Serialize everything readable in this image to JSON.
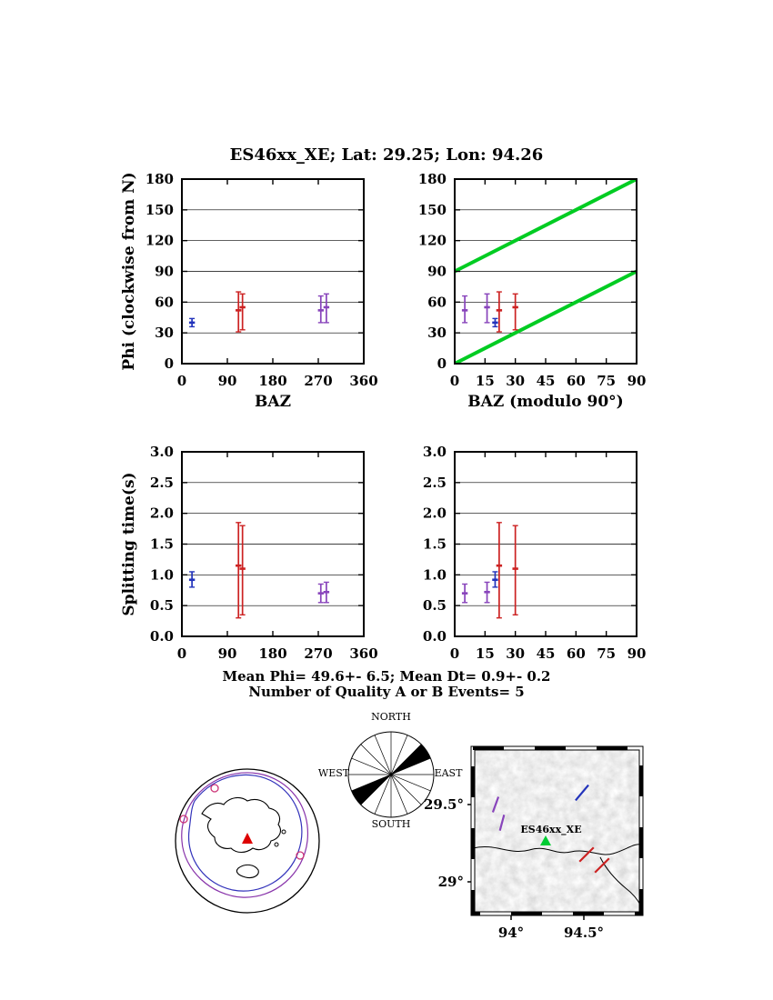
{
  "title": "ES46xx_XE; Lat: 29.25; Lon: 94.26",
  "summary": {
    "mean_line": "Mean Phi= 49.6+- 6.5; Mean Dt= 0.9+- 0.2",
    "events_line": "Number of Quality A or B Events= 5"
  },
  "colors": {
    "event_blue": "#2233bb",
    "event_red": "#cc2222",
    "event_purple": "#8844bb",
    "trend_green": "#00cc22",
    "station_green": "#00cc33",
    "globe_contour_blue": "#3333bb",
    "globe_contour_purple": "#8833aa",
    "globe_station_red": "#dd0000",
    "globe_event_magenta": "#cc3377"
  },
  "chart_data": [
    {
      "type": "scatter",
      "id": "phi_vs_baz",
      "xlabel": "BAZ",
      "ylabel": "Phi (clockwise from N)",
      "xlim": [
        0,
        360
      ],
      "xticks": [
        0,
        90,
        180,
        270,
        360
      ],
      "xtick_labels": [
        "0",
        "90",
        "180",
        "270",
        "360"
      ],
      "ylim": [
        0,
        180
      ],
      "yticks": [
        0,
        30,
        60,
        90,
        120,
        150,
        180
      ],
      "ytick_labels": [
        "0",
        "30",
        "60",
        "90",
        "120",
        "150",
        "180"
      ],
      "grid": "horizontal",
      "points": [
        {
          "x": 20,
          "y": 40,
          "ylo": 36,
          "yhi": 44,
          "color": "event_blue"
        },
        {
          "x": 112,
          "y": 52,
          "ylo": 31,
          "yhi": 70,
          "color": "event_red"
        },
        {
          "x": 120,
          "y": 55,
          "ylo": 33,
          "yhi": 68,
          "color": "event_red"
        },
        {
          "x": 275,
          "y": 52,
          "ylo": 40,
          "yhi": 66,
          "color": "event_purple"
        },
        {
          "x": 286,
          "y": 55,
          "ylo": 40,
          "yhi": 68,
          "color": "event_purple"
        }
      ]
    },
    {
      "type": "scatter",
      "id": "phi_vs_baz_mod90",
      "xlabel": "BAZ (modulo 90°)",
      "ylabel": "",
      "xlim": [
        0,
        90
      ],
      "xticks": [
        0,
        15,
        30,
        45,
        60,
        75,
        90
      ],
      "xtick_labels": [
        "0",
        "15",
        "30",
        "45",
        "60",
        "75",
        "90"
      ],
      "ylim": [
        0,
        180
      ],
      "yticks": [
        0,
        30,
        60,
        90,
        120,
        150,
        180
      ],
      "ytick_labels": [
        "0",
        "30",
        "60",
        "90",
        "120",
        "150",
        "180"
      ],
      "grid": "horizontal",
      "lines": [
        {
          "x1": 0,
          "y1": 0,
          "x2": 90,
          "y2": 90,
          "color": "trend_green",
          "width": 4
        },
        {
          "x1": 0,
          "y1": 90,
          "x2": 90,
          "y2": 180,
          "color": "trend_green",
          "width": 4
        }
      ],
      "points": [
        {
          "x": 20,
          "y": 40,
          "ylo": 36,
          "yhi": 44,
          "color": "event_blue"
        },
        {
          "x": 22,
          "y": 52,
          "ylo": 31,
          "yhi": 70,
          "color": "event_red"
        },
        {
          "x": 30,
          "y": 55,
          "ylo": 33,
          "yhi": 68,
          "color": "event_red"
        },
        {
          "x": 5,
          "y": 52,
          "ylo": 40,
          "yhi": 66,
          "color": "event_purple"
        },
        {
          "x": 16,
          "y": 55,
          "ylo": 40,
          "yhi": 68,
          "color": "event_purple"
        }
      ]
    },
    {
      "type": "scatter",
      "id": "dt_vs_baz",
      "xlabel": "",
      "ylabel": "Splitting time(s)",
      "xlim": [
        0,
        360
      ],
      "xticks": [
        0,
        90,
        180,
        270,
        360
      ],
      "xtick_labels": [
        "0",
        "90",
        "180",
        "270",
        "360"
      ],
      "ylim": [
        0,
        3
      ],
      "yticks": [
        0,
        0.5,
        1,
        1.5,
        2,
        2.5,
        3
      ],
      "ytick_labels": [
        "0.0",
        "0.5",
        "1.0",
        "1.5",
        "2.0",
        "2.5",
        "3.0"
      ],
      "grid": "horizontal",
      "points": [
        {
          "x": 20,
          "y": 0.92,
          "ylo": 0.8,
          "yhi": 1.05,
          "color": "event_blue"
        },
        {
          "x": 112,
          "y": 1.15,
          "ylo": 0.3,
          "yhi": 1.85,
          "color": "event_red"
        },
        {
          "x": 120,
          "y": 1.1,
          "ylo": 0.35,
          "yhi": 1.8,
          "color": "event_red"
        },
        {
          "x": 275,
          "y": 0.7,
          "ylo": 0.55,
          "yhi": 0.85,
          "color": "event_purple"
        },
        {
          "x": 286,
          "y": 0.72,
          "ylo": 0.55,
          "yhi": 0.88,
          "color": "event_purple"
        }
      ]
    },
    {
      "type": "scatter",
      "id": "dt_vs_baz_mod90",
      "xlabel": "",
      "ylabel": "",
      "xlim": [
        0,
        90
      ],
      "xticks": [
        0,
        15,
        30,
        45,
        60,
        75,
        90
      ],
      "xtick_labels": [
        "0",
        "15",
        "30",
        "45",
        "60",
        "75",
        "90"
      ],
      "ylim": [
        0,
        3
      ],
      "yticks": [
        0,
        0.5,
        1,
        1.5,
        2,
        2.5,
        3
      ],
      "ytick_labels": [
        "0.0",
        "0.5",
        "1.0",
        "1.5",
        "2.0",
        "2.5",
        "3.0"
      ],
      "grid": "horizontal",
      "points": [
        {
          "x": 20,
          "y": 0.92,
          "ylo": 0.8,
          "yhi": 1.05,
          "color": "event_blue"
        },
        {
          "x": 22,
          "y": 1.15,
          "ylo": 0.3,
          "yhi": 1.85,
          "color": "event_red"
        },
        {
          "x": 30,
          "y": 1.1,
          "ylo": 0.35,
          "yhi": 1.8,
          "color": "event_red"
        },
        {
          "x": 5,
          "y": 0.7,
          "ylo": 0.55,
          "yhi": 0.85,
          "color": "event_purple"
        },
        {
          "x": 16,
          "y": 0.72,
          "ylo": 0.55,
          "yhi": 0.88,
          "color": "event_purple"
        }
      ]
    },
    {
      "type": "rose",
      "id": "phi_rose",
      "labels": {
        "north": "NORTH",
        "east": "EAST",
        "south": "SOUTH",
        "west": "WEST"
      },
      "sector_width_deg": 22.5,
      "mean_phi_deg": 49.6,
      "filled_sectors": [
        {
          "start_deg": 45,
          "end_deg": 67.5
        },
        {
          "start_deg": 225,
          "end_deg": 247.5
        }
      ]
    },
    {
      "type": "globe",
      "id": "event_coverage_globe",
      "station_marker": "red-triangle",
      "event_markers": [
        {
          "x": 18,
          "y": 64
        },
        {
          "x": 146,
          "y": 104
        },
        {
          "x": 52,
          "y": 30
        }
      ]
    },
    {
      "type": "map",
      "id": "station_map",
      "station_label": "ES46xx_XE",
      "lat_tick_labels": [
        "29.5°",
        "29°"
      ],
      "lon_tick_labels": [
        "94°",
        "94.5°"
      ],
      "bars": [
        {
          "color": "event_blue",
          "cx": 180,
          "cy": 57,
          "angle_deg": 40,
          "len": 22
        },
        {
          "color": "event_purple",
          "cx": 85,
          "cy": 70,
          "angle_deg": 20,
          "len": 18
        },
        {
          "color": "event_purple",
          "cx": 92,
          "cy": 90,
          "angle_deg": 15,
          "len": 18
        },
        {
          "color": "event_red",
          "cx": 185,
          "cy": 125,
          "angle_deg": 45,
          "len": 22
        },
        {
          "color": "event_red",
          "cx": 202,
          "cy": 137,
          "angle_deg": 45,
          "len": 22
        }
      ]
    }
  ]
}
